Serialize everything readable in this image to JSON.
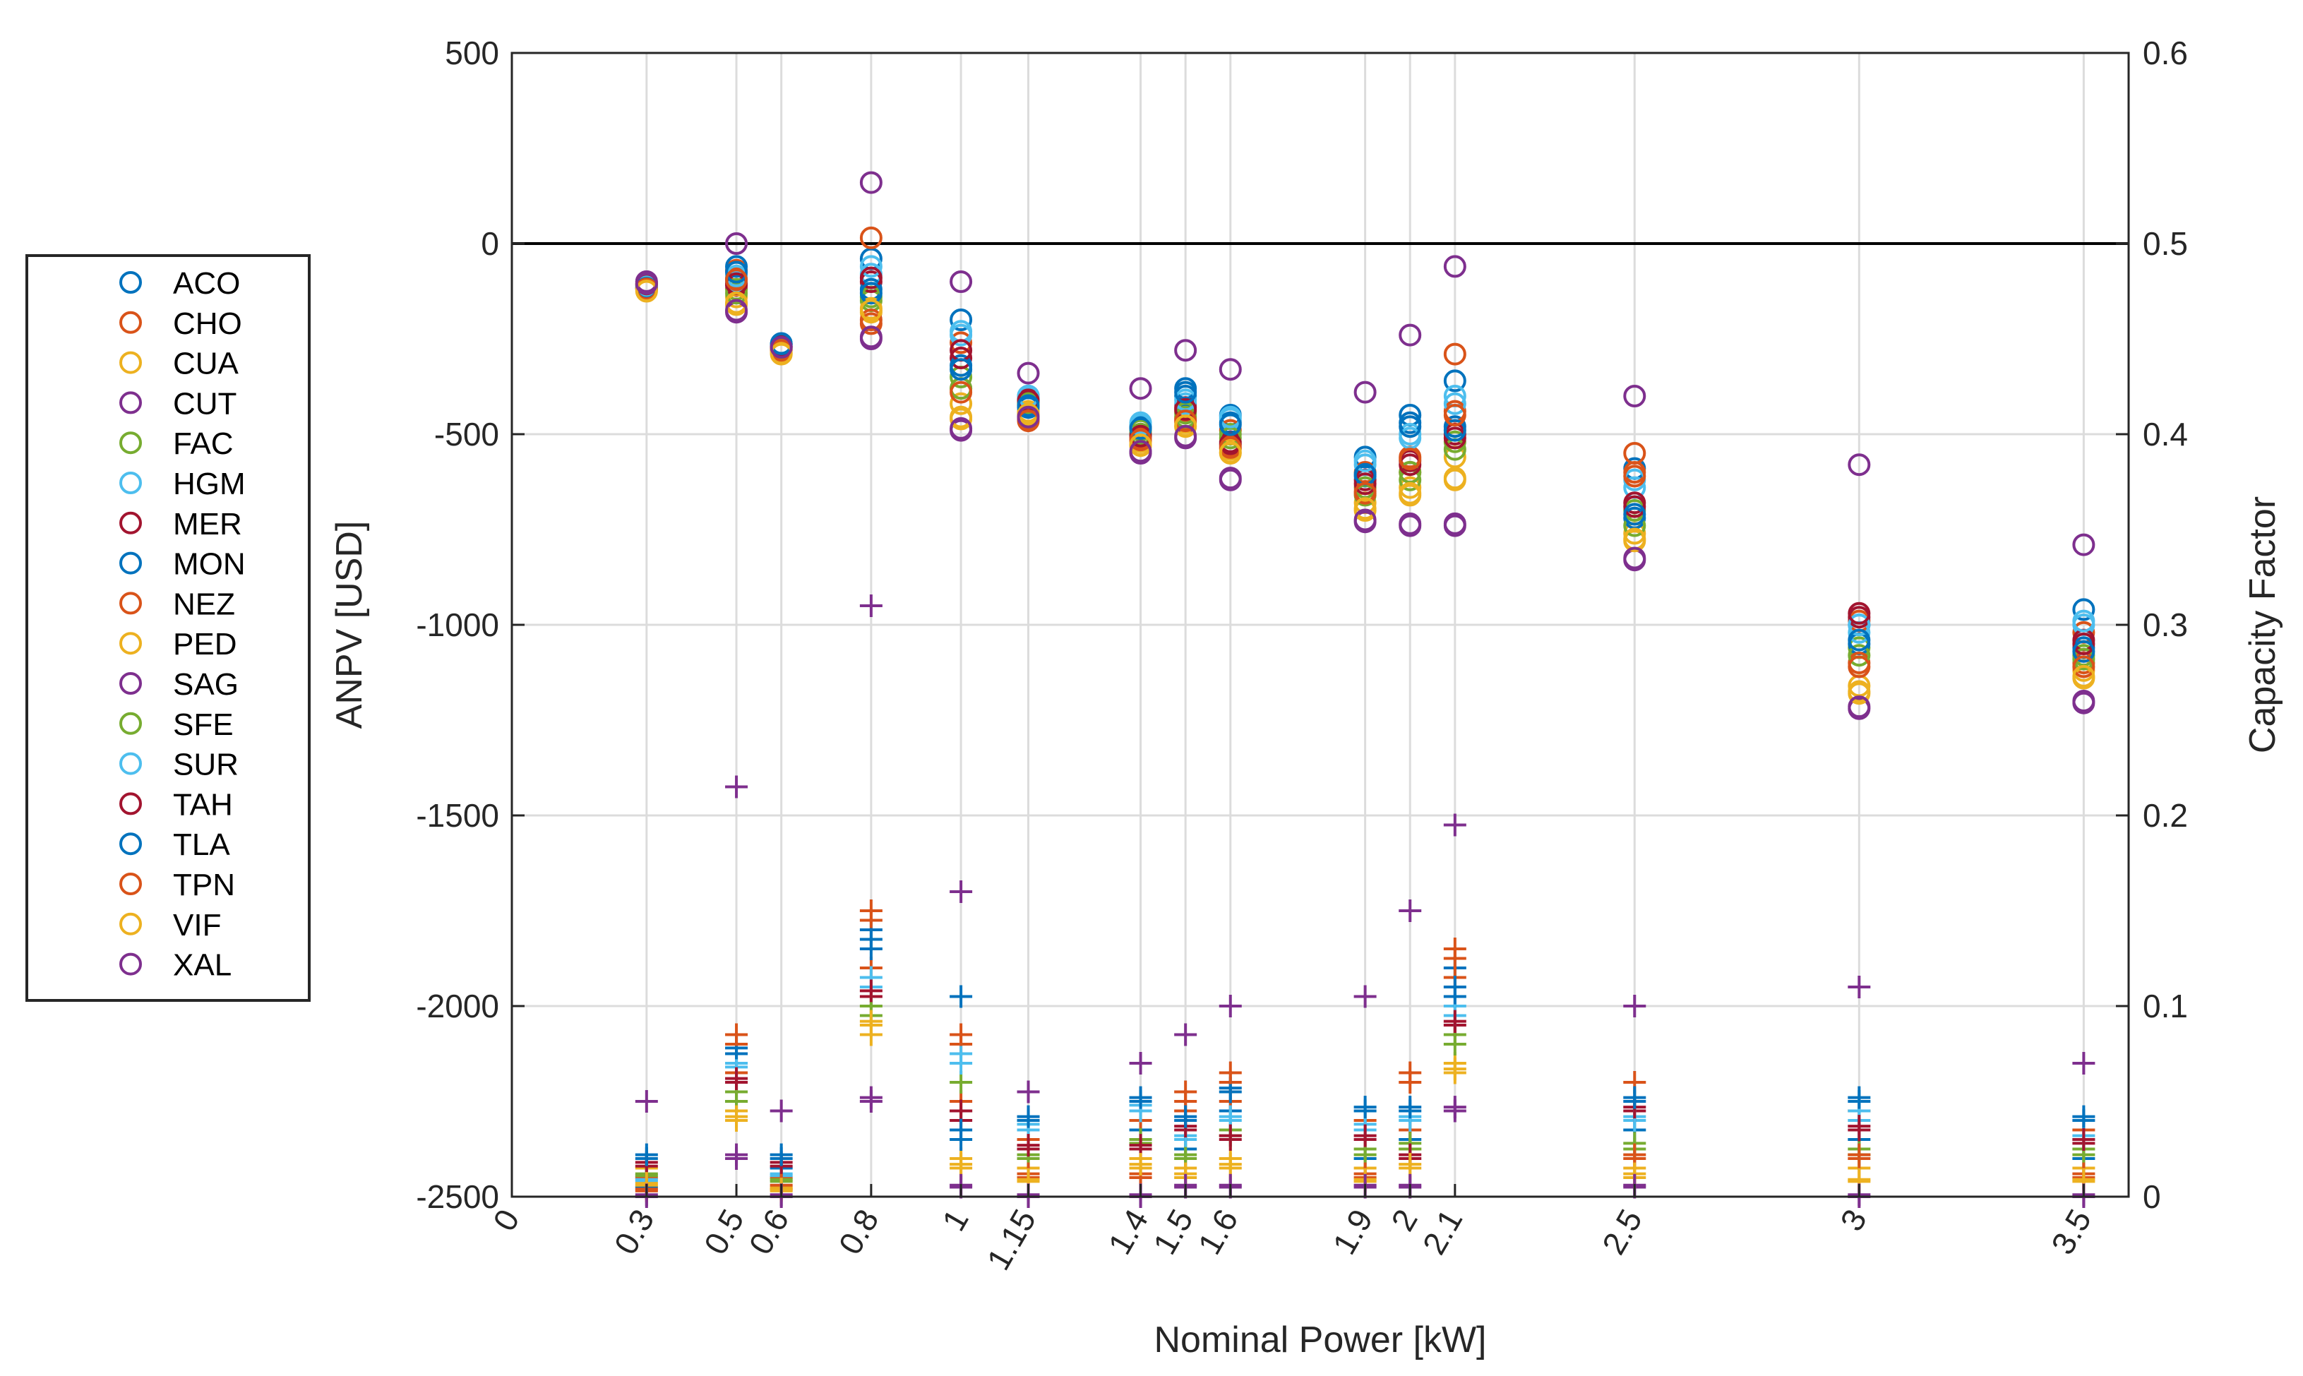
{
  "chart_data": {
    "type": "scatter",
    "title": "",
    "xlabel": "Nominal Power [kW]",
    "ylabel_left": "ANPV [USD]",
    "ylabel_right": "Capacity Factor",
    "xlim": [
      0,
      3.6
    ],
    "ylim_left": [
      -2500,
      500
    ],
    "ylim_right": [
      0,
      0.6
    ],
    "x_ticks": [
      0,
      0.3,
      0.5,
      0.6,
      0.8,
      1,
      1.15,
      1.4,
      1.5,
      1.6,
      1.9,
      2,
      2.1,
      2.5,
      3,
      3.5
    ],
    "x_tick_labels": [
      "0",
      "0.3",
      "0.5",
      "0.6",
      "0.8",
      "1",
      "1.15",
      "1.4",
      "1.5",
      "1.6",
      "1.9",
      "2",
      "2.1",
      "2.5",
      "3",
      "3.5"
    ],
    "y_left_ticks": [
      500,
      0,
      -500,
      -1000,
      -1500,
      -2000,
      -2500
    ],
    "y_left_tick_labels": [
      "500",
      "0",
      "-500",
      "-1000",
      "-1500",
      "-2000",
      "-2500"
    ],
    "y_right_ticks": [
      0.6,
      0.5,
      0.4,
      0.3,
      0.2,
      0.1,
      0
    ],
    "y_right_tick_labels": [
      "0.6",
      "0.5",
      "0.4",
      "0.3",
      "0.2",
      "0.1",
      "0"
    ],
    "grid": true,
    "reference_line_y": 0,
    "legend_position": "outside-left",
    "series_markers": {
      "anpv": "circle (left axis)",
      "capacity_factor": "plus (right axis)"
    },
    "series": [
      {
        "name": "ACO",
        "color": "#0072bd",
        "anpv": [
          -115,
          -95,
          -265,
          -40,
          -200,
          -400,
          -500,
          -400,
          -450,
          -560,
          -450,
          -360,
          -590,
          -1000,
          -960
        ],
        "cf": [
          0.005,
          0.05,
          0.015,
          0.14,
          0.105,
          0.025,
          0.035,
          0.025,
          0.045,
          0.02,
          0.03,
          0.12,
          0.035,
          0.03,
          0.02
        ]
      },
      {
        "name": "CHO",
        "color": "#d95319",
        "anpv": [
          -110,
          -70,
          -270,
          15,
          -260,
          -420,
          -480,
          -440,
          -490,
          -600,
          -600,
          -290,
          -550,
          -990,
          -1020
        ],
        "cf": [
          0.01,
          0.065,
          0.01,
          0.12,
          0.05,
          0.03,
          0.04,
          0.045,
          0.05,
          0.04,
          0.035,
          0.115,
          0.06,
          0.045,
          0.035
        ]
      },
      {
        "name": "CUA",
        "color": "#edb120",
        "anpv": [
          -120,
          -140,
          -290,
          -180,
          -420,
          -440,
          -520,
          -470,
          -540,
          -680,
          -640,
          -560,
          -760,
          -1160,
          -1120
        ],
        "cf": [
          0.015,
          0.045,
          0.005,
          0.085,
          0.02,
          0.015,
          0.02,
          0.015,
          0.02,
          0.015,
          0.025,
          0.07,
          0.015,
          0.015,
          0.015
        ]
      },
      {
        "name": "CUT",
        "color": "#7e2f8e",
        "anpv": [
          -100,
          -180,
          -270,
          -250,
          -490,
          -450,
          -550,
          -510,
          -620,
          -730,
          -740,
          -740,
          -830,
          -1220,
          -1200
        ],
        "cf": [
          0.0,
          0.02,
          0.0,
          0.05,
          0.005,
          0.0,
          0.0,
          0.005,
          0.005,
          0.005,
          0.005,
          0.045,
          0.005,
          0.0,
          0.0
        ]
      },
      {
        "name": "FAC",
        "color": "#77ac30",
        "anpv": [
          -105,
          -120,
          -275,
          -150,
          -350,
          -415,
          -490,
          -445,
          -500,
          -640,
          -620,
          -520,
          -700,
          -1060,
          -1080
        ],
        "cf": [
          0.012,
          0.055,
          0.008,
          0.095,
          0.06,
          0.02,
          0.03,
          0.02,
          0.035,
          0.025,
          0.028,
          0.085,
          0.025,
          0.025,
          0.025
        ]
      },
      {
        "name": "HGM",
        "color": "#4dbeee",
        "anpv": [
          -112,
          -100,
          -268,
          -80,
          -230,
          -405,
          -470,
          -420,
          -460,
          -580,
          -500,
          -400,
          -640,
          -1020,
          -1000
        ],
        "cf": [
          0.008,
          0.07,
          0.012,
          0.11,
          0.07,
          0.035,
          0.045,
          0.03,
          0.04,
          0.035,
          0.04,
          0.1,
          0.04,
          0.04,
          0.03
        ]
      },
      {
        "name": "MER",
        "color": "#a2142f",
        "anpv": [
          -108,
          -110,
          -272,
          -100,
          -300,
          -410,
          -500,
          -430,
          -520,
          -620,
          -570,
          -500,
          -680,
          -980,
          -1040
        ],
        "cf": [
          0.018,
          0.06,
          0.018,
          0.105,
          0.04,
          0.025,
          0.025,
          0.035,
          0.03,
          0.03,
          0.02,
          0.09,
          0.045,
          0.035,
          0.028
        ]
      },
      {
        "name": "MON",
        "color": "#0072bd",
        "anpv": [
          -116,
          -60,
          -262,
          -120,
          -320,
          -430,
          -480,
          -380,
          -470,
          -610,
          -470,
          -480,
          -720,
          -1050,
          -1060
        ],
        "cf": [
          0.02,
          0.075,
          0.02,
          0.13,
          0.03,
          0.04,
          0.05,
          0.04,
          0.055,
          0.045,
          0.045,
          0.105,
          0.05,
          0.05,
          0.04
        ]
      },
      {
        "name": "NEZ",
        "color": "#d95319",
        "anpv": [
          -118,
          -90,
          -278,
          -200,
          -380,
          -460,
          -510,
          -460,
          -530,
          -650,
          -560,
          -440,
          -600,
          -1100,
          -1100
        ],
        "cf": [
          0.003,
          0.08,
          0.004,
          0.145,
          0.08,
          0.01,
          0.01,
          0.05,
          0.06,
          0.01,
          0.06,
          0.125,
          0.02,
          0.02,
          0.01
        ]
      },
      {
        "name": "PED",
        "color": "#edb120",
        "anpv": [
          -125,
          -160,
          -285,
          -170,
          -460,
          -445,
          -530,
          -480,
          -550,
          -700,
          -660,
          -620,
          -780,
          -1180,
          -1140
        ],
        "cf": [
          0.006,
          0.04,
          0.003,
          0.09,
          0.015,
          0.008,
          0.015,
          0.01,
          0.015,
          0.008,
          0.015,
          0.065,
          0.01,
          0.008,
          0.008
        ]
      },
      {
        "name": "SAG",
        "color": "#7e2f8e",
        "anpv": [
          -100,
          0,
          -265,
          160,
          -100,
          -340,
          -380,
          -280,
          -330,
          -390,
          -240,
          -60,
          -400,
          -580,
          -790
        ],
        "cf": [
          0.05,
          0.215,
          0.045,
          0.31,
          0.16,
          0.055,
          0.07,
          0.085,
          0.1,
          0.105,
          0.15,
          0.195,
          0.1,
          0.11,
          0.07
        ]
      },
      {
        "name": "SFE",
        "color": "#77ac30",
        "anpv": [
          -110,
          -130,
          -275,
          -140,
          -380,
          -420,
          -500,
          -455,
          -510,
          -660,
          -600,
          -540,
          -740,
          -1080,
          -1090
        ],
        "cf": [
          0.011,
          0.05,
          0.009,
          0.1,
          0.045,
          0.022,
          0.028,
          0.022,
          0.032,
          0.022,
          0.025,
          0.08,
          0.028,
          0.022,
          0.022
        ]
      },
      {
        "name": "SUR",
        "color": "#4dbeee",
        "anpv": [
          -114,
          -85,
          -266,
          -60,
          -240,
          -400,
          -475,
          -410,
          -455,
          -570,
          -510,
          -420,
          -620,
          -1000,
          -990
        ],
        "cf": [
          0.009,
          0.068,
          0.011,
          0.115,
          0.075,
          0.038,
          0.048,
          0.032,
          0.042,
          0.038,
          0.042,
          0.095,
          0.042,
          0.045,
          0.032
        ]
      },
      {
        "name": "TAH",
        "color": "#a2142f",
        "anpv": [
          -106,
          -105,
          -270,
          -90,
          -280,
          -412,
          -505,
          -435,
          -525,
          -630,
          -580,
          -510,
          -690,
          -970,
          -1050
        ],
        "cf": [
          0.016,
          0.062,
          0.016,
          0.108,
          0.045,
          0.027,
          0.027,
          0.037,
          0.032,
          0.032,
          0.022,
          0.092,
          0.047,
          0.037,
          0.03
        ]
      },
      {
        "name": "TLA",
        "color": "#0072bd",
        "anpv": [
          -117,
          -75,
          -263,
          -130,
          -330,
          -425,
          -485,
          -390,
          -475,
          -605,
          -480,
          -490,
          -710,
          -1040,
          -1070
        ],
        "cf": [
          0.022,
          0.078,
          0.022,
          0.135,
          0.035,
          0.042,
          0.052,
          0.042,
          0.057,
          0.047,
          0.047,
          0.11,
          0.052,
          0.052,
          0.042
        ]
      },
      {
        "name": "TPN",
        "color": "#d95319",
        "anpv": [
          -119,
          -95,
          -280,
          -210,
          -390,
          -465,
          -515,
          -465,
          -535,
          -655,
          -565,
          -450,
          -610,
          -1110,
          -1110
        ],
        "cf": [
          0.004,
          0.085,
          0.006,
          0.15,
          0.085,
          0.012,
          0.012,
          0.055,
          0.065,
          0.012,
          0.065,
          0.13,
          0.022,
          0.022,
          0.012
        ]
      },
      {
        "name": "VIF",
        "color": "#edb120",
        "anpv": [
          -124,
          -155,
          -288,
          -175,
          -455,
          -448,
          -528,
          -478,
          -548,
          -695,
          -655,
          -615,
          -775,
          -1175,
          -1135
        ],
        "cf": [
          0.007,
          0.042,
          0.004,
          0.092,
          0.017,
          0.009,
          0.017,
          0.012,
          0.017,
          0.009,
          0.017,
          0.067,
          0.012,
          0.009,
          0.009
        ]
      },
      {
        "name": "XAL",
        "color": "#7e2f8e",
        "anpv": [
          -105,
          -175,
          -272,
          -245,
          -485,
          -455,
          -545,
          -505,
          -615,
          -725,
          -735,
          -735,
          -825,
          -1215,
          -1205
        ],
        "cf": [
          0.001,
          0.022,
          0.001,
          0.052,
          0.006,
          0.001,
          0.001,
          0.006,
          0.006,
          0.006,
          0.006,
          0.047,
          0.006,
          0.001,
          0.001
        ]
      }
    ],
    "x_values": [
      0.3,
      0.5,
      0.6,
      0.8,
      1,
      1.15,
      1.4,
      1.5,
      1.6,
      1.9,
      2,
      2.1,
      2.5,
      3,
      3.5
    ]
  }
}
